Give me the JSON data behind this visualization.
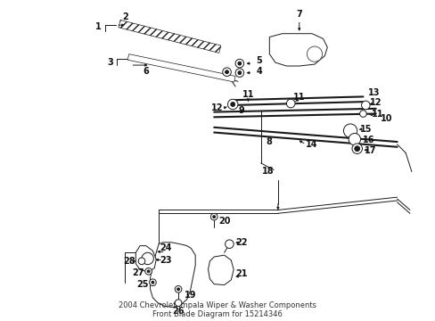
{
  "title": "2004 Chevrolet Impala Wiper & Washer Components\nFront Blade Diagram for 15214346",
  "bg_color": "#ffffff",
  "line_color": "#1a1a1a",
  "label_color": "#111111",
  "label_fontsize": 7.0,
  "title_fontsize": 6.0
}
